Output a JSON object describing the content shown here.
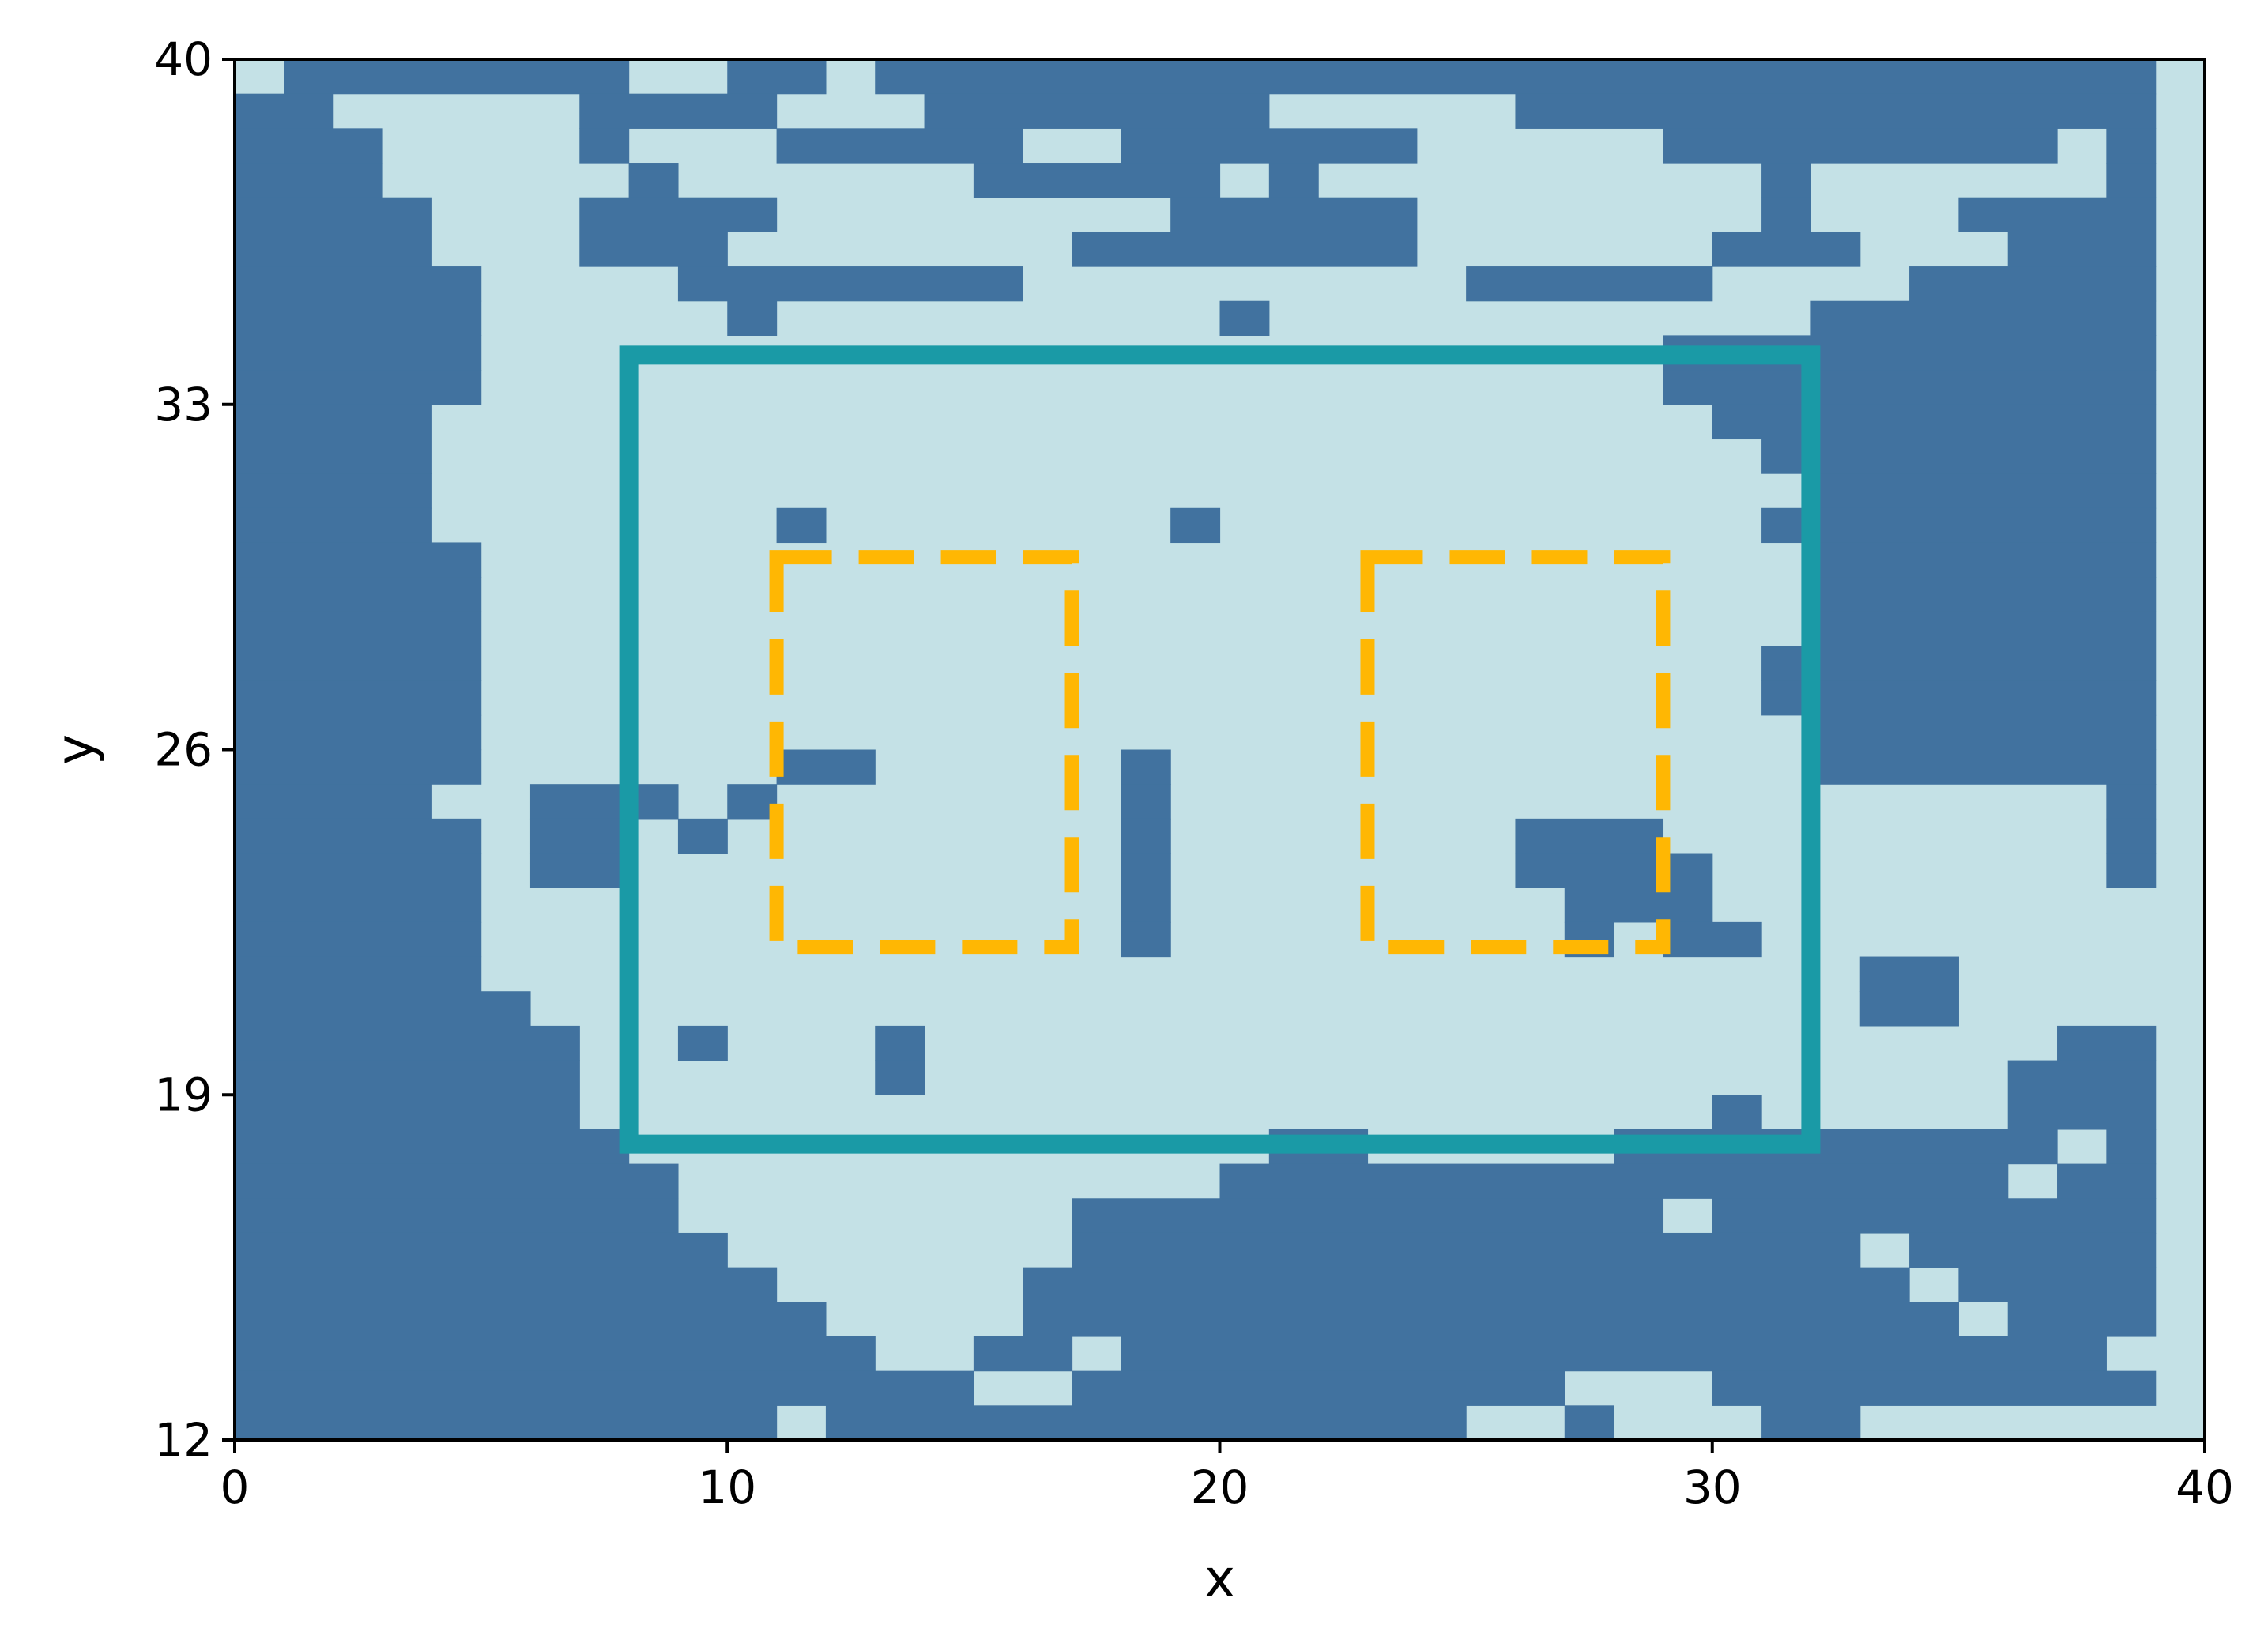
{
  "chart_data": {
    "type": "heatmap",
    "xlabel": "x",
    "ylabel": "y",
    "xlim": [
      0,
      40
    ],
    "ylim": [
      12,
      40
    ],
    "xticks": [
      0,
      10,
      20,
      30,
      40
    ],
    "yticks": [
      12,
      19,
      26,
      33,
      40
    ],
    "grid": false,
    "colors": {
      "occupied": "#41729f",
      "free": "#c4e1e6",
      "outer_rectangle": "#1a9aa6",
      "inner_rectangles": "#ffb703"
    },
    "grid_cell_size": [
      1,
      0.7
    ],
    "note_rows": "row 0 = top (y 39.3-40), row 39 = bottom (y 12-12.7); '#' occupied, '.' free; columns x 0..40",
    "occupancy_rows": [
      ".#######..##.##########################",
      "##.....####...#######.....#############",
      "###....#...#####..######.....########.#",
      "###.....#......#####.#.........#......#",
      "####...####........#####.......#...####",
      "####...###.......#######......###...###",
      "#####....#######.........#####....#####",
      "#####.....#.........#...........#######",
      "#####........................##########",
      "#####........................##########",
      "####..........................#########",
      "####...........................########",
      "####............................#######",
      "####.......#.......#...........########",
      "#####...........................#######",
      "#####...........................#######",
      "#####...........................#######",
      "#####..........................########",
      "#####..........................########",
      "#####...........................#######",
      "#####......##.....#.............#######",
      "####..###.#.......#...................#",
      "#####.##.#........#.......###.........#",
      "#####.##..........#.......####........#",
      "#####.............#........###.........",
      "#####.............#........#.##........",
      "#####............................##....",
      "######...........................##....",
      "#######..#...#.......................##",
      "#######......#......................###",
      "#######.......................#.....###",
      "########.............##.....#########.#",
      "#########...........################.##",
      "#########........############.#########",
      "##########.......################.#####",
      "###########.....##################.####",
      "############....###################.###",
      "#############..##.####################.",
      "###############..##########...#########",
      "###########.#############..#...##......"
    ],
    "outer_rectangle": {
      "x": [
        8,
        32
      ],
      "y": [
        18,
        34
      ],
      "style": "solid"
    },
    "inner_rectangles": [
      {
        "x": [
          11,
          17
        ],
        "y": [
          22,
          29.9
        ],
        "style": "dashed"
      },
      {
        "x": [
          23,
          29
        ],
        "y": [
          22,
          29.9
        ],
        "style": "dashed"
      }
    ]
  }
}
